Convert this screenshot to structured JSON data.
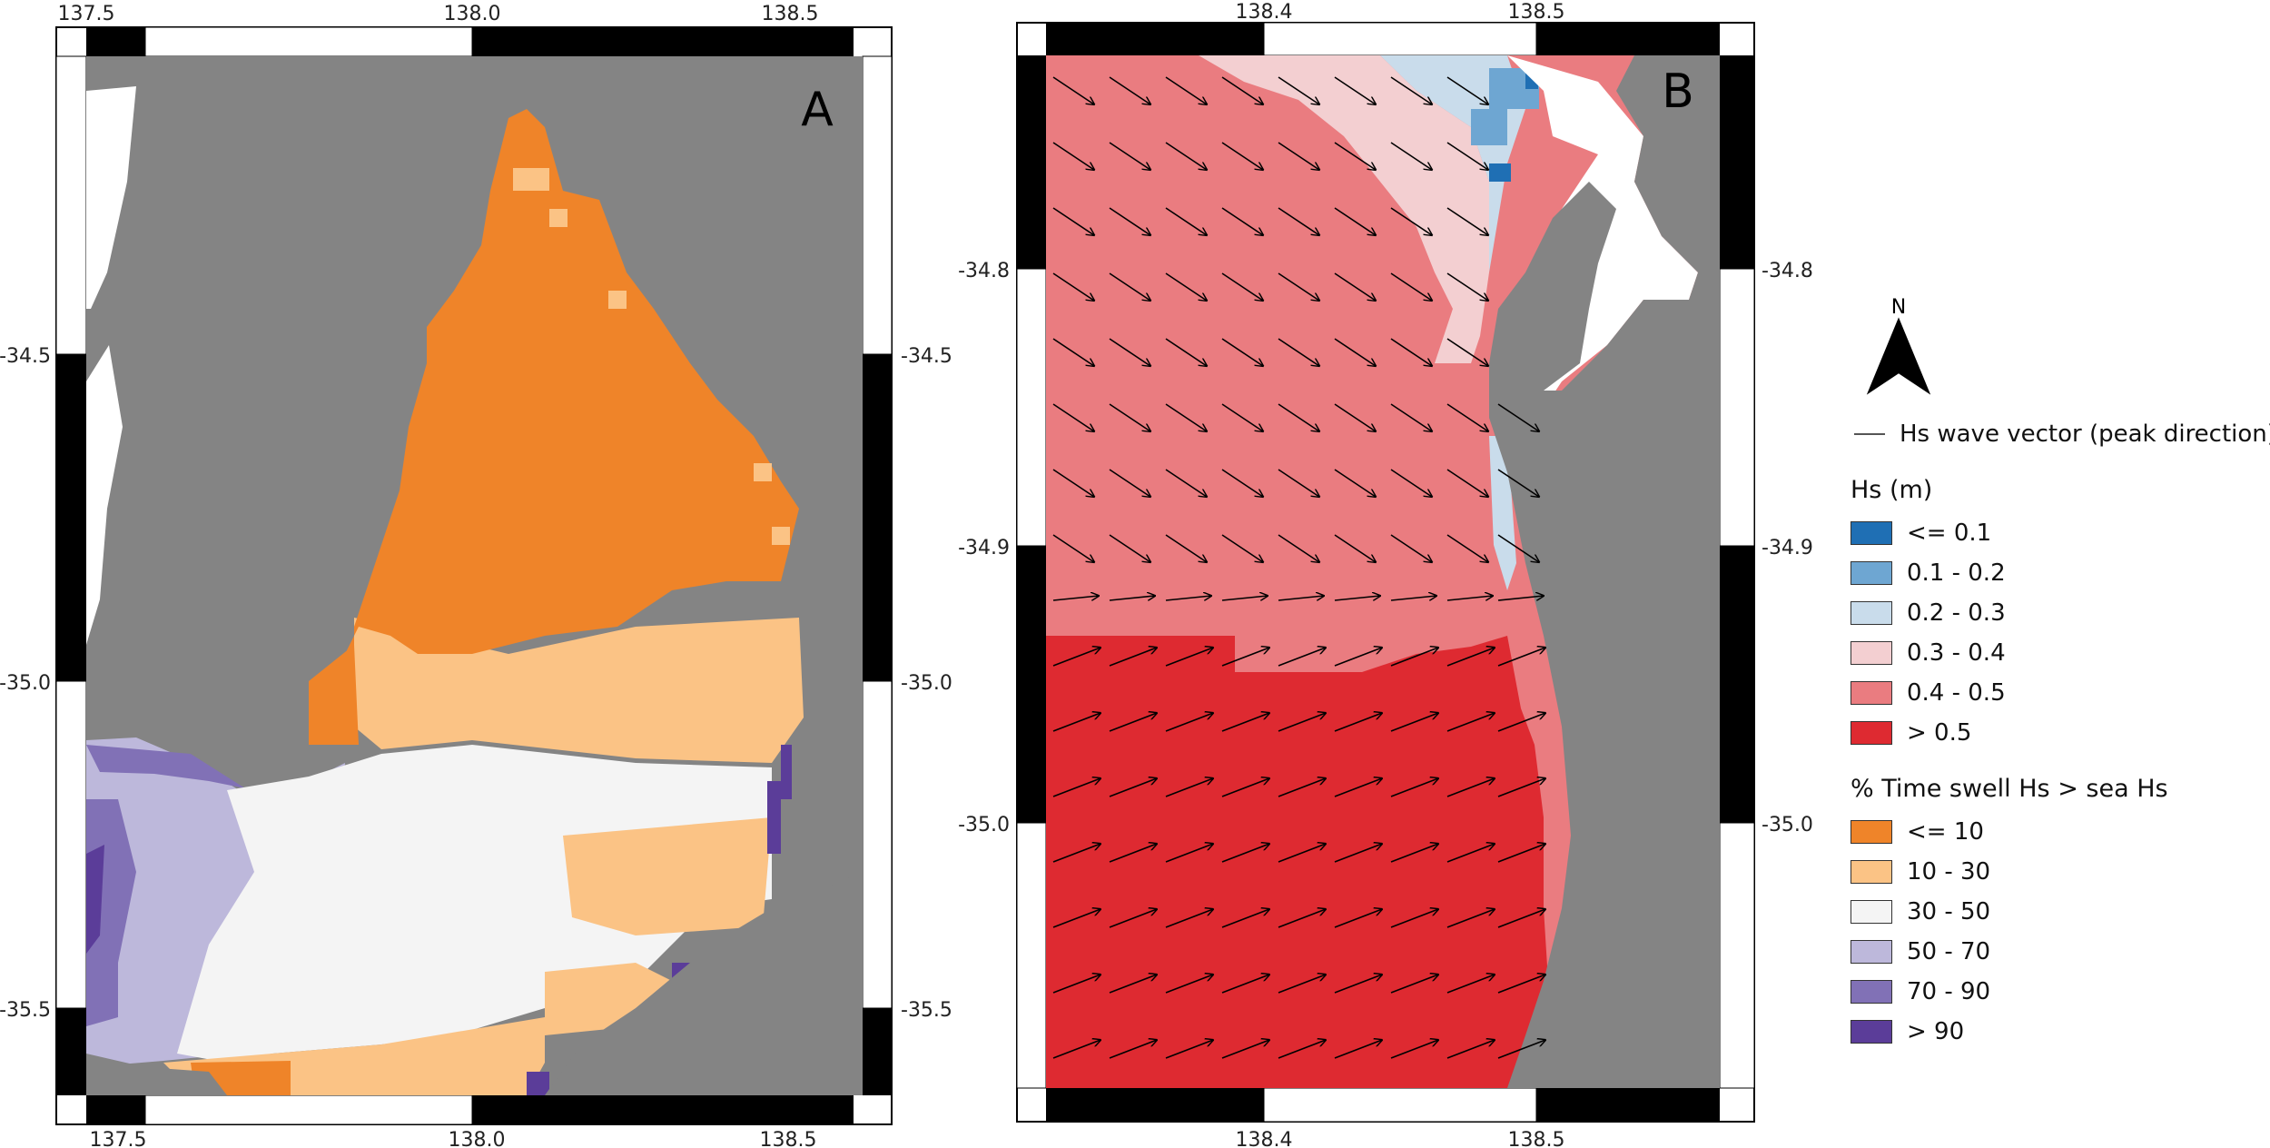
{
  "panel_a": {
    "label": "A",
    "x_ticks": [
      "137.5",
      "138.0",
      "138.5"
    ],
    "y_ticks": [
      "-34.5",
      "-35.0",
      "-35.5"
    ]
  },
  "panel_b": {
    "label": "B",
    "x_ticks": [
      "138.4",
      "138.5"
    ],
    "y_ticks": [
      "-34.8",
      "-34.9",
      "-35.0"
    ]
  },
  "north_arrow": {
    "label": "N",
    "icon": "north-arrow-icon"
  },
  "legend": {
    "vector_label": "Hs wave vector (peak direction)",
    "hs": {
      "title": "Hs (m)",
      "classes": [
        {
          "label": "<= 0.1",
          "color": "#1f6fb4"
        },
        {
          "label": "0.1 - 0.2",
          "color": "#6ea6d2"
        },
        {
          "label": "0.2 - 0.3",
          "color": "#c9dceb"
        },
        {
          "label": "0.3 - 0.4",
          "color": "#f3cfd1"
        },
        {
          "label": "0.4 - 0.5",
          "color": "#ea7c80"
        },
        {
          "label": "> 0.5",
          "color": "#de2a31"
        }
      ]
    },
    "swell": {
      "title": "% Time swell Hs > sea Hs",
      "classes": [
        {
          "label": "<= 10",
          "color": "#ef8429"
        },
        {
          "label": "10 - 30",
          "color": "#fbc385"
        },
        {
          "label": "30 - 50",
          "color": "#f4f4f4"
        },
        {
          "label": "50 - 70",
          "color": "#bdb8db"
        },
        {
          "label": "70 - 90",
          "color": "#8171b6"
        },
        {
          "label": "> 90",
          "color": "#5b3d99"
        }
      ]
    }
  },
  "colors": {
    "land": "#848484",
    "frame": "#000000"
  }
}
